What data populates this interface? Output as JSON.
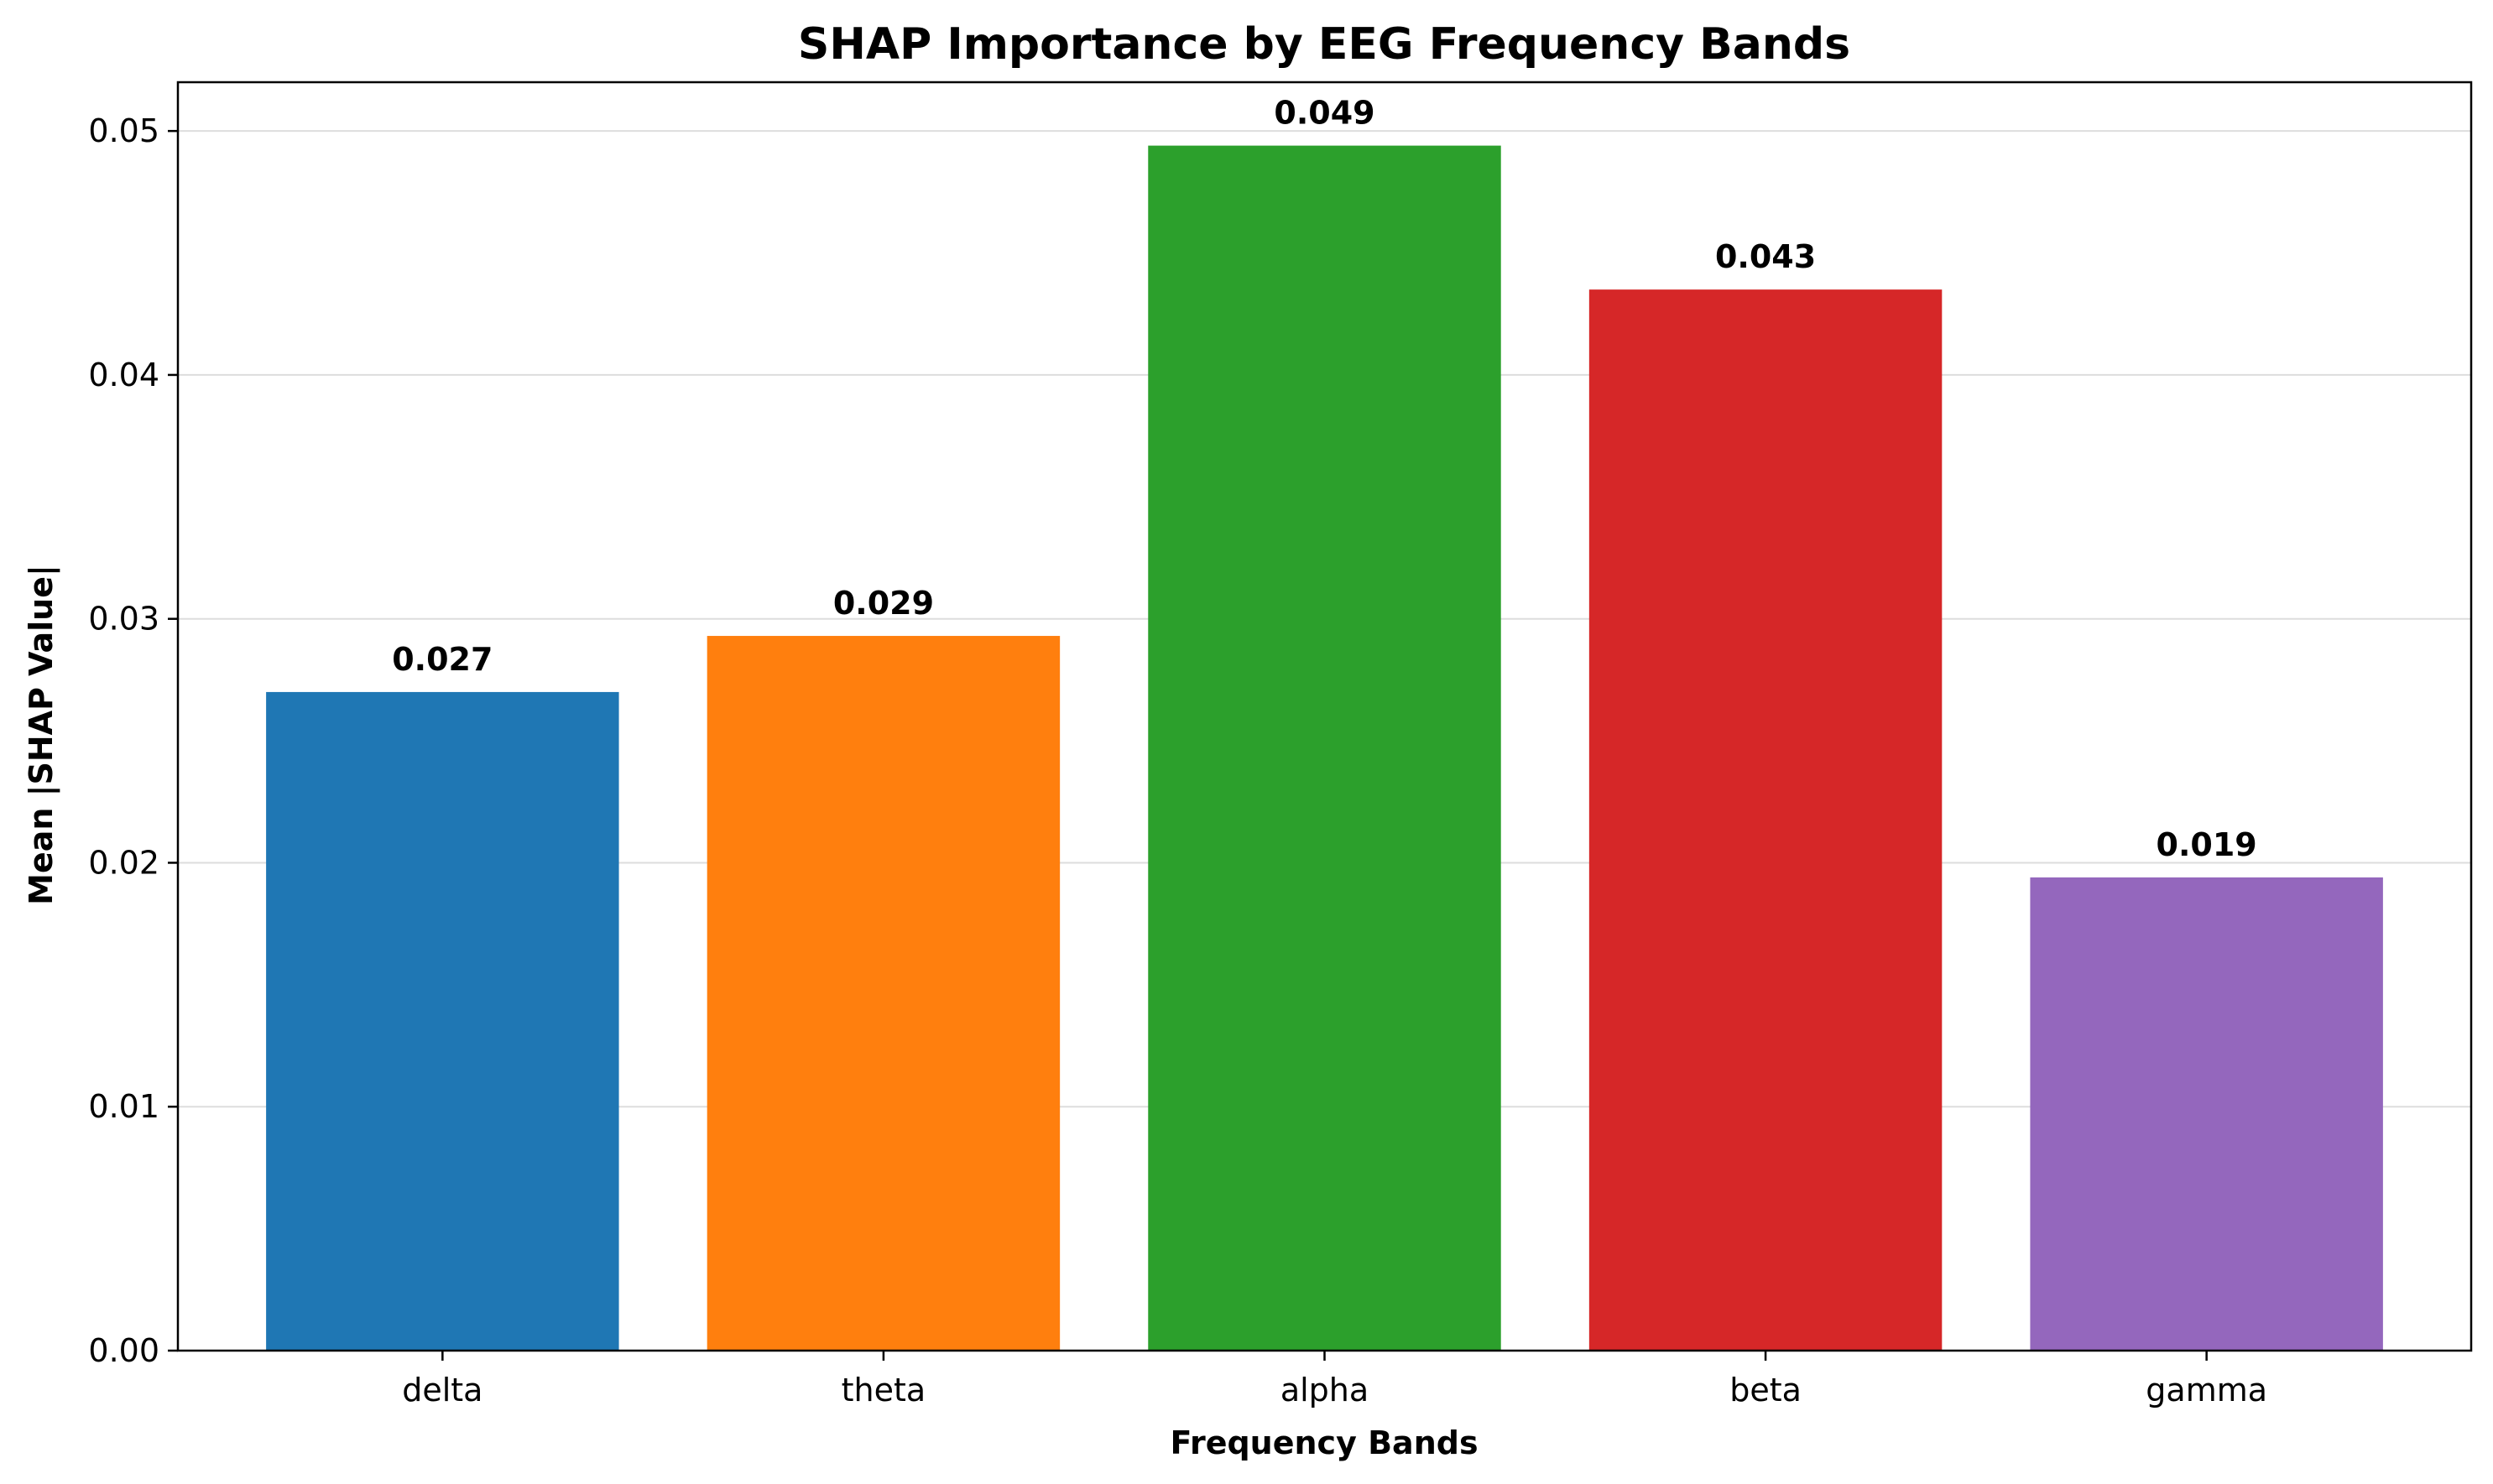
{
  "chart_data": {
    "type": "bar",
    "title": "SHAP Importance by EEG Frequency Bands",
    "xlabel": "Frequency Bands",
    "ylabel": "Mean |SHAP Value|",
    "categories": [
      "delta",
      "theta",
      "alpha",
      "beta",
      "gamma"
    ],
    "values": [
      0.027,
      0.0293,
      0.0494,
      0.0435,
      0.0194
    ],
    "data_labels": [
      "0.027",
      "0.029",
      "0.049",
      "0.043",
      "0.019"
    ],
    "colors": [
      "#1f77b4",
      "#ff7f0e",
      "#2ca02c",
      "#d62728",
      "#9467bd"
    ],
    "ylim": [
      0,
      0.052
    ],
    "yticks": [
      0.0,
      0.01,
      0.02,
      0.03,
      0.04,
      0.05
    ],
    "ytick_labels": [
      "0.00",
      "0.01",
      "0.02",
      "0.03",
      "0.04",
      "0.05"
    ],
    "grid": "horizontal",
    "legend": "none"
  }
}
